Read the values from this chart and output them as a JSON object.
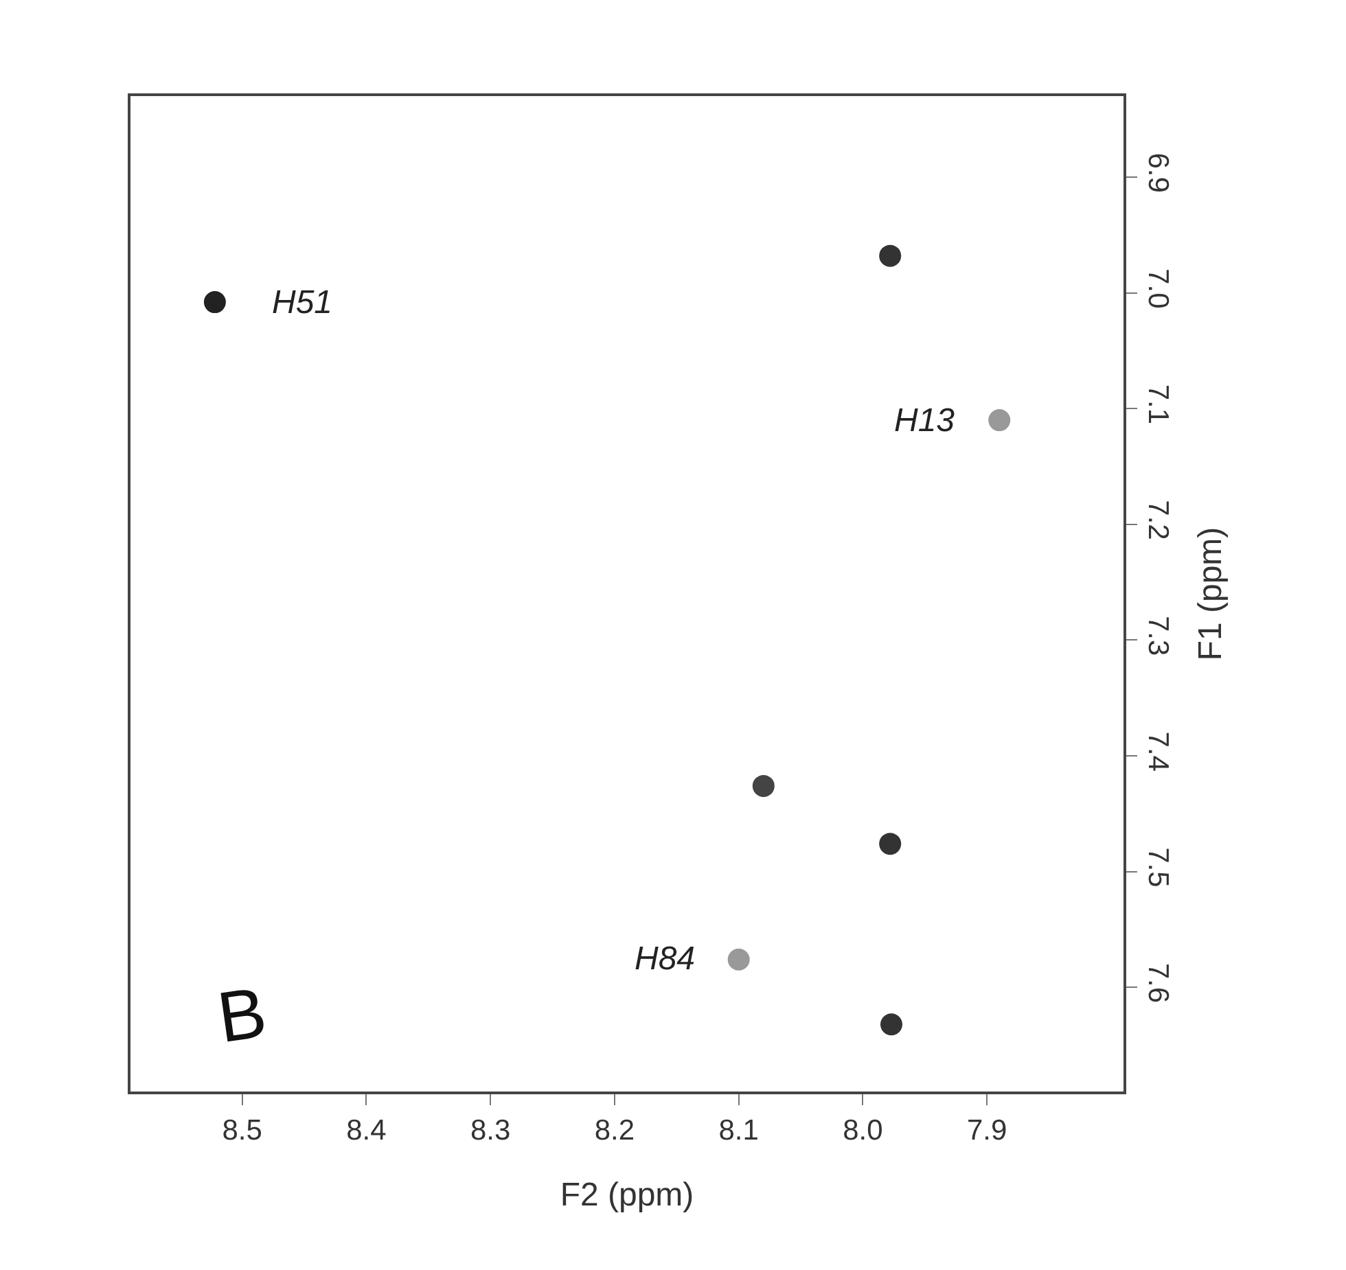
{
  "chart_data": {
    "type": "scatter",
    "xlabel": "F2 (ppm)",
    "ylabel": "F1 (ppm)",
    "x": [
      8.522,
      7.978,
      7.89,
      8.08,
      7.978,
      8.1,
      7.977
    ],
    "values": [
      7.008,
      6.968,
      7.11,
      7.426,
      7.476,
      7.576,
      7.632
    ],
    "colors": [
      "#222222",
      "#333333",
      "#999999",
      "#444444",
      "#333333",
      "#999999",
      "#333333"
    ],
    "marker": "circle",
    "xlim": [
      8.59,
      7.79
    ],
    "xticks": [
      8.5,
      8.4,
      8.3,
      8.2,
      8.1,
      {
        "value": 8.0,
        "label": "8.0"
      },
      7.9
    ],
    "ylim": [
      7.69,
      6.83
    ],
    "yticks": [
      6.9,
      {
        "value": 7.0,
        "label": "7.0"
      },
      7.1,
      7.2,
      7.3,
      7.4,
      7.5,
      7.6
    ],
    "grid": false,
    "legend": false,
    "annotations": [
      {
        "text": "H51",
        "x": 8.522,
        "y": 7.008
      },
      {
        "text": "H13",
        "x": 7.89,
        "y": 7.11
      },
      {
        "text": "H84",
        "x": 8.1,
        "y": 7.576
      },
      "B"
    ]
  }
}
